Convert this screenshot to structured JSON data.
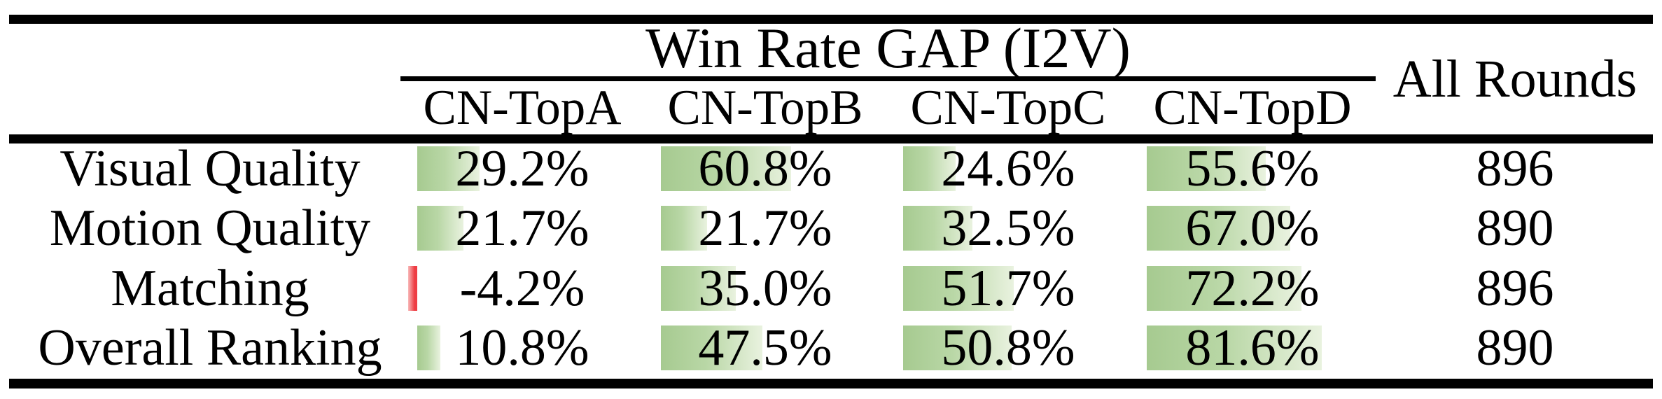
{
  "table": {
    "group_header": "Win Rate GAP (I2V)",
    "all_rounds_header": "All Rounds",
    "columns": [
      "CN-TopA",
      "CN-TopB",
      "CN-TopC",
      "CN-TopD"
    ],
    "rows": [
      {
        "label": "Visual Quality",
        "values": [
          "29.2%",
          "60.8%",
          "24.6%",
          "55.6%"
        ],
        "all_rounds": "896"
      },
      {
        "label": "Motion Quality",
        "values": [
          "21.7%",
          "21.7%",
          "32.5%",
          "67.0%"
        ],
        "all_rounds": "890"
      },
      {
        "label": "Matching",
        "values": [
          "-4.2%",
          "35.0%",
          "51.7%",
          "72.2%"
        ],
        "all_rounds": "896"
      },
      {
        "label": "Overall Ranking",
        "values": [
          "10.8%",
          "47.5%",
          "50.8%",
          "81.6%"
        ],
        "all_rounds": "890"
      }
    ],
    "colors": {
      "positive_bar_start": "#a6ca90",
      "positive_bar_mid": "#b9d7a6",
      "positive_bar_end": "#e9f2df",
      "negative_bar_start": "#f8b9b9",
      "negative_bar_end": "#ee3d44",
      "rule": "#000000",
      "text": "#000000",
      "background": "#ffffff"
    }
  },
  "chart_data": {
    "type": "table",
    "title": "Win Rate GAP (I2V)",
    "columns": [
      "CN-TopA",
      "CN-TopB",
      "CN-TopC",
      "CN-TopD",
      "All Rounds"
    ],
    "row_labels": [
      "Visual Quality",
      "Motion Quality",
      "Matching",
      "Overall Ranking"
    ],
    "series": [
      {
        "name": "CN-TopA",
        "values": [
          29.2,
          21.7,
          -4.2,
          10.8
        ],
        "unit": "%"
      },
      {
        "name": "CN-TopB",
        "values": [
          60.8,
          21.7,
          35.0,
          47.5
        ],
        "unit": "%"
      },
      {
        "name": "CN-TopC",
        "values": [
          24.6,
          32.5,
          51.7,
          50.8
        ],
        "unit": "%"
      },
      {
        "name": "CN-TopD",
        "values": [
          55.6,
          67.0,
          72.2,
          81.6
        ],
        "unit": "%"
      }
    ],
    "all_rounds": [
      896,
      890,
      896,
      890
    ],
    "bar_style": "in-cell data bars, green gradient for positive, red for negative, length proportional to value"
  }
}
